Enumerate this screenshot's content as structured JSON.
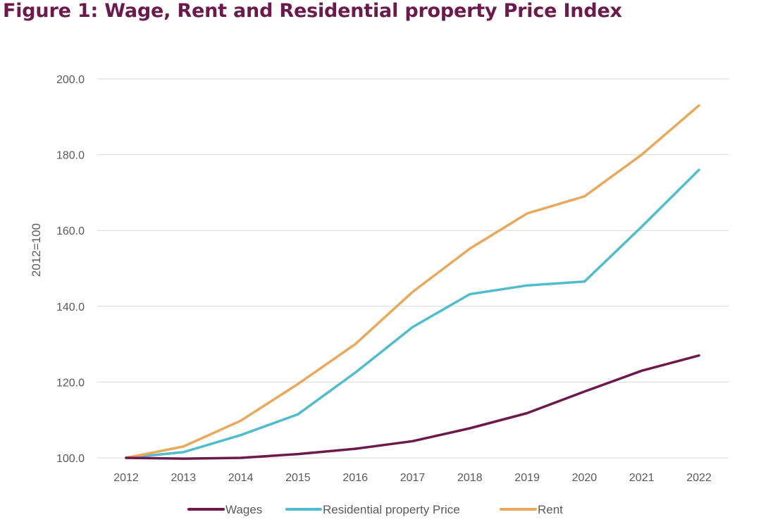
{
  "title": "Figure 1: Wage, Rent and Residential property Price Index",
  "colors": {
    "title": "#6b1a4b",
    "grid": "#d9d9d9",
    "text": "#595959"
  },
  "chart_data": {
    "type": "line",
    "title": "Figure 1: Wage, Rent and Residential property Price Index",
    "xlabel": "",
    "ylabel": "2012=100",
    "categories": [
      "2012",
      "2013",
      "2014",
      "2015",
      "2016",
      "2017",
      "2018",
      "2019",
      "2020",
      "2021",
      "2022"
    ],
    "ylim": [
      100,
      200
    ],
    "yticks": [
      100,
      120,
      140,
      160,
      180,
      200
    ],
    "ytick_labels": [
      "100.0",
      "120.0",
      "140.0",
      "160.0",
      "180.0",
      "200.0"
    ],
    "grid": true,
    "legend_position": "bottom",
    "series": [
      {
        "name": "Wages",
        "color": "#6b1a4b",
        "values": [
          100.0,
          99.8,
          100.0,
          101.0,
          102.4,
          104.4,
          107.8,
          111.8,
          117.5,
          123.0,
          127.0
        ]
      },
      {
        "name": "Residential property Price",
        "color": "#4fbdcc",
        "values": [
          100.0,
          101.5,
          106.0,
          111.5,
          122.5,
          134.5,
          143.2,
          145.5,
          146.5,
          161.0,
          176.0
        ]
      },
      {
        "name": "Rent",
        "color": "#e8a95a",
        "values": [
          100.0,
          103.0,
          109.8,
          119.5,
          130.0,
          143.8,
          155.2,
          164.5,
          169.0,
          180.0,
          193.0
        ]
      }
    ]
  }
}
